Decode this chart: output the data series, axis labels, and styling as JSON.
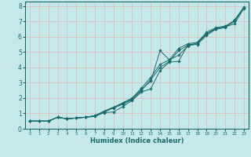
{
  "title": "",
  "xlabel": "Humidex (Indice chaleur)",
  "ylabel": "",
  "bg_color": "#c5e8e8",
  "grid_color": "#ddbcbc",
  "line_color": "#1a6b6b",
  "marker_color": "#1a6b6b",
  "xlim": [
    -0.5,
    23.5
  ],
  "ylim": [
    0,
    8.3
  ],
  "xticks": [
    0,
    1,
    2,
    3,
    4,
    5,
    6,
    7,
    8,
    9,
    10,
    11,
    12,
    13,
    14,
    15,
    16,
    17,
    18,
    19,
    20,
    21,
    22,
    23
  ],
  "yticks": [
    0,
    1,
    2,
    3,
    4,
    5,
    6,
    7,
    8
  ],
  "series": [
    [
      0.5,
      0.5,
      0.5,
      0.75,
      0.65,
      0.7,
      0.75,
      0.8,
      1.05,
      1.1,
      1.45,
      1.85,
      2.4,
      2.6,
      3.8,
      4.35,
      4.4,
      5.5,
      5.5,
      6.1,
      6.5,
      6.6,
      7.1,
      7.9
    ],
    [
      0.5,
      0.5,
      0.5,
      0.75,
      0.65,
      0.7,
      0.75,
      0.85,
      1.15,
      1.4,
      1.65,
      1.95,
      2.55,
      3.1,
      5.1,
      4.5,
      4.8,
      5.4,
      5.55,
      6.2,
      6.5,
      6.65,
      6.85,
      7.85
    ],
    [
      0.5,
      0.5,
      0.5,
      0.75,
      0.65,
      0.7,
      0.75,
      0.85,
      1.1,
      1.35,
      1.6,
      1.9,
      2.5,
      3.2,
      4.0,
      4.4,
      5.1,
      5.45,
      5.6,
      6.2,
      6.55,
      6.65,
      7.0,
      7.9
    ],
    [
      0.5,
      0.5,
      0.5,
      0.75,
      0.65,
      0.7,
      0.75,
      0.85,
      1.15,
      1.4,
      1.7,
      2.0,
      2.65,
      3.35,
      4.2,
      4.5,
      5.25,
      5.55,
      5.65,
      6.3,
      6.6,
      6.7,
      7.05,
      7.95
    ]
  ]
}
